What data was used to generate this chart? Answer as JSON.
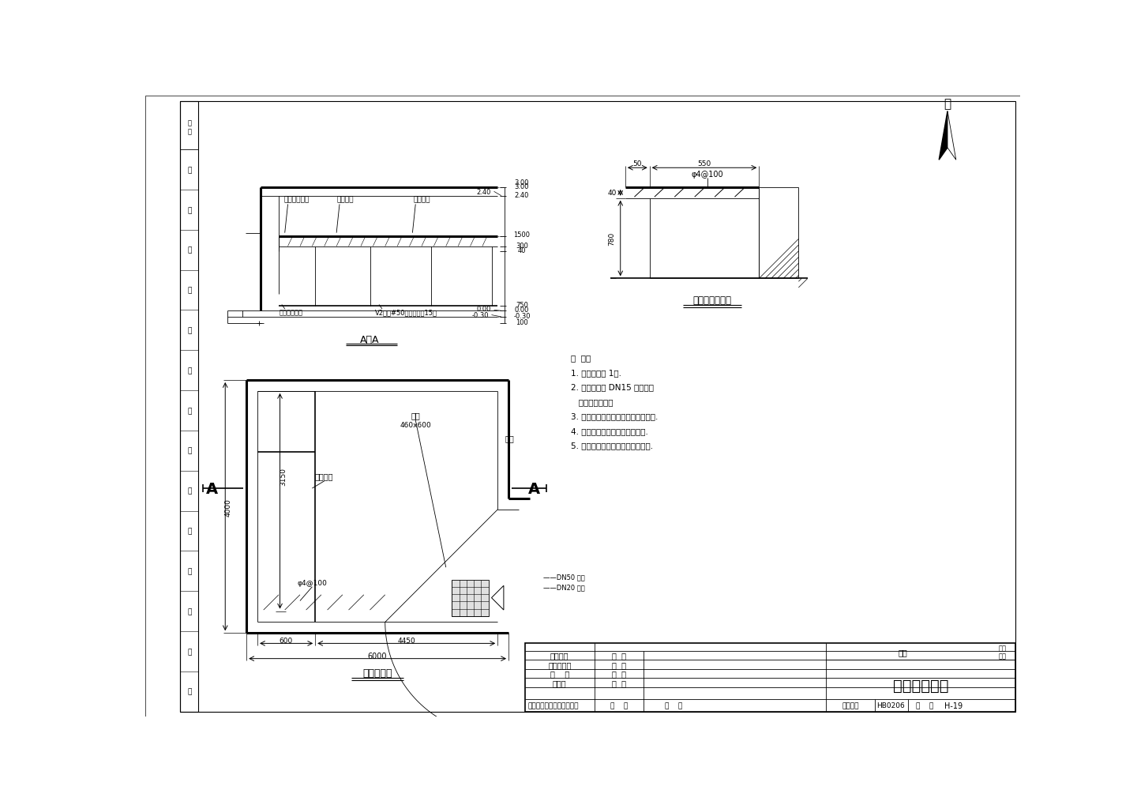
{
  "bg_color": "#ffffff",
  "line_color": "#000000",
  "notes": [
    "说  明：",
    "1. 化验盆规格 1号.",
    "2. 室内给水管 DN15 镀锌管，",
    "   接三联水嘴一套",
    "3. 操作平台面贴瓷砖瓷磨面加胶皮板.",
    "4. 操作平台下安装木门做药品柜.",
    "5. 化验室地面做瓷砖面防滑地砖面."
  ],
  "left_labels": [
    "某",
    "纺",
    "织",
    "公",
    "司",
    "废",
    "水",
    "处",
    "理",
    "工",
    "程",
    "设",
    "计",
    "院"
  ]
}
